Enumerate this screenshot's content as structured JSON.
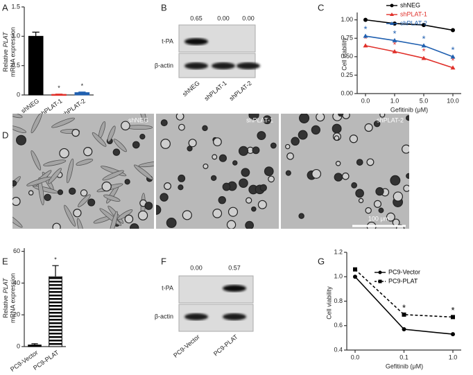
{
  "panels": [
    "A",
    "B",
    "C",
    "D",
    "E",
    "F",
    "G"
  ],
  "chart_data": [
    {
      "type": "bar",
      "ylabel": [
        "Relative",
        "PLAT",
        "mRNA expression"
      ],
      "categories": [
        "shNEG",
        "shPLAT-1",
        "shPLAT-2"
      ],
      "values": [
        1.0,
        0.01,
        0.04
      ],
      "errors": [
        0.07,
        0.005,
        0.01
      ],
      "colors": [
        "#000000",
        "#e0302a",
        "#2060b0"
      ],
      "significance": [
        null,
        "*",
        "*"
      ],
      "ylim": [
        0,
        1.5
      ],
      "yticks": [
        0,
        0.5,
        {
          "value": 1,
          "label": "1.0"
        },
        1.5
      ]
    },
    {
      "type": "line",
      "xlabel": "Gefitinib (μM)",
      "ylabel": "Cell viability",
      "categories": [
        "0.0",
        "1.0",
        "5.0",
        "10.0"
      ],
      "series": [
        {
          "name": "shNEG",
          "color": "#000000",
          "marker": "circle",
          "values": [
            1.0,
            0.95,
            0.93,
            0.86
          ]
        },
        {
          "name": "shPLAT-1",
          "color": "#e0302a",
          "marker": "triangle",
          "values": [
            0.65,
            0.57,
            0.48,
            0.35
          ],
          "significance": [
            "*",
            "*",
            "*",
            "*"
          ]
        },
        {
          "name": "shPLAT-2",
          "color": "#2060b0",
          "marker": "triangle",
          "values": [
            0.78,
            0.72,
            0.65,
            0.5
          ],
          "significance": [
            "*",
            "*",
            "*",
            "*"
          ]
        }
      ],
      "ylim": [
        0,
        1.1
      ],
      "yticks": [
        {
          "value": 0,
          "label": "0.00"
        },
        {
          "value": 0.25,
          "label": "0.25"
        },
        {
          "value": 0.5,
          "label": "0.50"
        },
        {
          "value": 0.75,
          "label": "0.75"
        },
        {
          "value": 1,
          "label": "1.00"
        }
      ],
      "legend": "upper right"
    },
    {
      "type": "bar",
      "ylabel": [
        "Relative",
        "PLAT",
        "mRNA expression"
      ],
      "categories": [
        "PC9-Vector",
        "PC9-PLAT"
      ],
      "values": [
        1,
        44
      ],
      "errors": [
        0.8,
        7
      ],
      "colors": [
        "#000000",
        "#000000"
      ],
      "hatched": [
        false,
        true
      ],
      "significance": [
        null,
        "*"
      ],
      "ylim": [
        0,
        62
      ],
      "yticks": [
        0,
        20,
        40,
        60
      ]
    },
    {
      "type": "line",
      "xlabel": "Gefitinib (μM)",
      "ylabel": "Cell viability",
      "categories": [
        "0.0",
        "0.1",
        "1.0"
      ],
      "series": [
        {
          "name": "PC9-Vector",
          "color": "#000000",
          "marker": "circle",
          "dashed": false,
          "values": [
            1.0,
            0.57,
            0.53
          ]
        },
        {
          "name": "PC9-PLAT",
          "color": "#000000",
          "marker": "square",
          "dashed": true,
          "values": [
            1.06,
            0.69,
            0.67
          ],
          "significance": [
            null,
            "*",
            "*"
          ]
        }
      ],
      "ylim": [
        0.4,
        1.2
      ],
      "yticks": [
        0.4,
        0.6,
        0.8,
        {
          "value": 1,
          "label": "1.0"
        },
        1.2
      ],
      "legend": "upper right"
    }
  ],
  "blots": [
    {
      "quantities": [
        "0.65",
        "0.00",
        "0.00"
      ],
      "bands": [
        "t-PA",
        "β-actin"
      ],
      "lanes": [
        "shNEG",
        "shPLAT-1",
        "shPLAT-2"
      ]
    },
    {
      "quantities": [
        "0.00",
        "0.57"
      ],
      "bands": [
        "t-PA",
        "β-actin"
      ],
      "lanes": [
        "PC9-Vector",
        "PC9-PLAT"
      ]
    }
  ],
  "micrographs": {
    "labels": [
      "shNEG",
      "shPLAT-1",
      "shPLAT-2"
    ],
    "scale_bar": "100 μm"
  }
}
